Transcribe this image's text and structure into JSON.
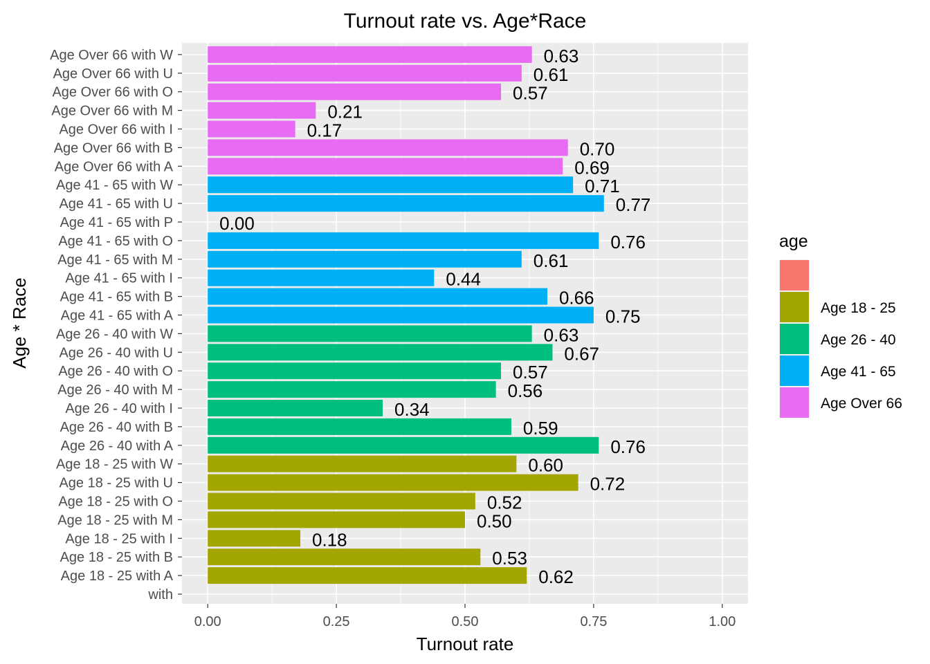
{
  "chart_data": {
    "type": "bar",
    "orientation": "horizontal",
    "title": "Turnout rate vs. Age*Race",
    "xlabel": "Turnout rate",
    "ylabel": "Age * Race",
    "xlim": [
      -0.05,
      1.05
    ],
    "xticks": [
      "0.00",
      "0.25",
      "0.50",
      "0.75",
      "1.00"
    ],
    "xtick_values": [
      0,
      0.25,
      0.5,
      0.75,
      1.0
    ],
    "grid": true,
    "legend": {
      "title": "age",
      "placement": "right",
      "items": [
        {
          "label": "",
          "color": "#F8766D"
        },
        {
          "label": "Age 18 - 25",
          "color": "#A3A500"
        },
        {
          "label": "Age 26 - 40",
          "color": "#00BF7D"
        },
        {
          "label": "Age 41 - 65",
          "color": "#00B0F6"
        },
        {
          "label": "Age Over 66",
          "color": "#E76BF3"
        }
      ]
    },
    "categories": [
      "with",
      "Age 18 - 25 with A",
      "Age 18 - 25 with B",
      "Age 18 - 25 with I",
      "Age 18 - 25 with M",
      "Age 18 - 25 with O",
      "Age 18 - 25 with U",
      "Age 18 - 25 with W",
      "Age 26 - 40 with A",
      "Age 26 - 40 with B",
      "Age 26 - 40 with I",
      "Age 26 - 40 with M",
      "Age 26 - 40 with O",
      "Age 26 - 40 with U",
      "Age 26 - 40 with W",
      "Age 41 - 65 with A",
      "Age 41 - 65 with B",
      "Age 41 - 65 with I",
      "Age 41 - 65 with M",
      "Age 41 - 65 with O",
      "Age 41 - 65 with P",
      "Age 41 - 65 with U",
      "Age 41 - 65 with W",
      "Age Over 66 with A",
      "Age Over 66 with B",
      "Age Over 66 with I",
      "Age Over 66 with M",
      "Age Over 66 with O",
      "Age Over 66 with U",
      "Age Over 66 with W"
    ],
    "values": [
      null,
      0.62,
      0.53,
      0.18,
      0.5,
      0.52,
      0.72,
      0.6,
      0.76,
      0.59,
      0.34,
      0.56,
      0.57,
      0.67,
      0.63,
      0.75,
      0.66,
      0.44,
      0.61,
      0.76,
      0.0,
      0.77,
      0.71,
      0.69,
      0.7,
      0.17,
      0.21,
      0.57,
      0.61,
      0.63
    ],
    "labels": [
      "",
      "0.62",
      "0.53",
      "0.18",
      "0.50",
      "0.52",
      "0.72",
      "0.60",
      "0.76",
      "0.59",
      "0.34",
      "0.56",
      "0.57",
      "0.67",
      "0.63",
      "0.75",
      "0.66",
      "0.44",
      "0.61",
      "0.76",
      "0.00",
      "0.77",
      "0.71",
      "0.69",
      "0.70",
      "0.17",
      "0.21",
      "0.57",
      "0.61",
      "0.63"
    ],
    "groups": [
      "",
      "Age 18 - 25",
      "Age 18 - 25",
      "Age 18 - 25",
      "Age 18 - 25",
      "Age 18 - 25",
      "Age 18 - 25",
      "Age 18 - 25",
      "Age 26 - 40",
      "Age 26 - 40",
      "Age 26 - 40",
      "Age 26 - 40",
      "Age 26 - 40",
      "Age 26 - 40",
      "Age 26 - 40",
      "Age 41 - 65",
      "Age 41 - 65",
      "Age 41 - 65",
      "Age 41 - 65",
      "Age 41 - 65",
      "Age 41 - 65",
      "Age 41 - 65",
      "Age 41 - 65",
      "Age Over 66",
      "Age Over 66",
      "Age Over 66",
      "Age Over 66",
      "Age Over 66",
      "Age Over 66",
      "Age Over 66"
    ],
    "colors": {
      "": "#F8766D",
      "Age 18 - 25": "#A3A500",
      "Age 26 - 40": "#00BF7D",
      "Age 41 - 65": "#00B0F6",
      "Age Over 66": "#E76BF3"
    },
    "panel_background": "#EBEBEB"
  }
}
